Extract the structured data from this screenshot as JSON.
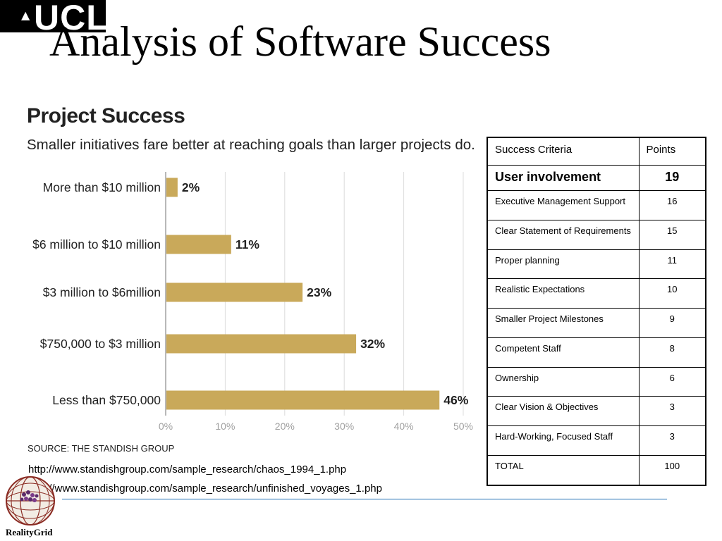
{
  "slide": {
    "logo": "UCL",
    "title": "Analysis of Software Success"
  },
  "chart_data": {
    "type": "bar",
    "orientation": "horizontal",
    "title": "Project Success",
    "subtitle": "Smaller initiatives fare better at reaching goals than larger projects do.",
    "categories": [
      "More than $10 million",
      "$6 million to $10 million",
      "$3 million to $6million",
      "$750,000 to $3 million",
      "Less than $750,000"
    ],
    "values": [
      2,
      11,
      23,
      32,
      46
    ],
    "value_labels": [
      "2%",
      "11%",
      "23%",
      "32%",
      "46%"
    ],
    "xlim": [
      0,
      50
    ],
    "xticks": [
      "0%",
      "10%",
      "20%",
      "30%",
      "40%",
      "50%"
    ],
    "grid": true,
    "bar_color": "#c9a95a",
    "source": "SOURCE: THE STANDISH GROUP"
  },
  "table": {
    "headers": [
      "Success Criteria",
      "Points"
    ],
    "rows": [
      {
        "criterion": "User involvement",
        "points": "19"
      },
      {
        "criterion": "Executive Management Support",
        "points": "16"
      },
      {
        "criterion": "Clear Statement of Requirements",
        "points": "15"
      },
      {
        "criterion": "Proper planning",
        "points": "11"
      },
      {
        "criterion": "Realistic Expectations",
        "points": "10"
      },
      {
        "criterion": "Smaller Project Milestones",
        "points": "9"
      },
      {
        "criterion": "Competent Staff",
        "points": "8"
      },
      {
        "criterion": "Ownership",
        "points": "6"
      },
      {
        "criterion": "Clear Vision & Objectives",
        "points": "3"
      },
      {
        "criterion": "Hard-Working, Focused Staff",
        "points": "3"
      },
      {
        "criterion": "TOTAL",
        "points": "100"
      }
    ]
  },
  "links": [
    "http://www.standishgroup.com/sample_research/chaos_1994_1.php",
    "http://www.standishgroup.com/sample_research/unfinished_voyages_1.php"
  ],
  "footer": {
    "logo_label": "RealityGrid"
  }
}
